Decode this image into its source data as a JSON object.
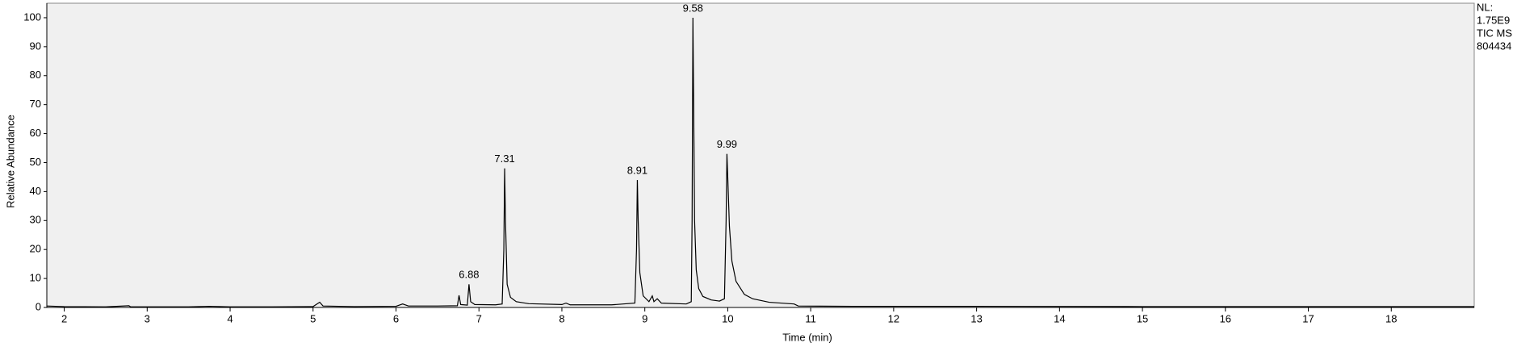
{
  "chart_data": {
    "type": "line",
    "x_label": "Time (min)",
    "y_label": "Relative Abundance",
    "info": [
      "NL:",
      "1.75E9",
      "TIC  MS",
      "804434"
    ],
    "color": "#000000",
    "x": [
      1.79,
      2.0,
      2.5,
      2.78,
      2.8,
      3.5,
      3.75,
      4.0,
      4.5,
      5.0,
      5.08,
      5.12,
      5.5,
      6.0,
      6.08,
      6.15,
      6.5,
      6.74,
      6.76,
      6.78,
      6.86,
      6.88,
      6.9,
      6.95,
      7.2,
      7.28,
      7.3,
      7.31,
      7.32,
      7.34,
      7.38,
      7.45,
      7.6,
      8.0,
      8.05,
      8.1,
      8.6,
      8.88,
      8.9,
      8.91,
      8.92,
      8.94,
      8.98,
      9.05,
      9.09,
      9.11,
      9.15,
      9.2,
      9.5,
      9.56,
      9.57,
      9.58,
      9.59,
      9.6,
      9.62,
      9.65,
      9.7,
      9.8,
      9.9,
      9.96,
      9.98,
      9.99,
      10.0,
      10.02,
      10.05,
      10.1,
      10.2,
      10.3,
      10.5,
      10.8,
      10.85,
      11.5,
      13,
      15,
      17,
      19
    ],
    "values": [
      0.5,
      0.3,
      0.2,
      0.6,
      0.2,
      0.2,
      0.4,
      0.2,
      0.2,
      0.3,
      1.8,
      0.5,
      0.3,
      0.4,
      1.2,
      0.5,
      0.5,
      0.6,
      4.2,
      1.0,
      0.8,
      8.0,
      2.0,
      1.0,
      0.9,
      1.2,
      20,
      48,
      30,
      8,
      3.5,
      2,
      1.3,
      1.0,
      1.5,
      0.9,
      0.9,
      1.5,
      20,
      44,
      30,
      12,
      4,
      2,
      4,
      2,
      3,
      1.5,
      1.2,
      2,
      30,
      100,
      66,
      30,
      13,
      6.5,
      3.8,
      2.6,
      2.2,
      3,
      30,
      53,
      45,
      28,
      16,
      9,
      4.5,
      3,
      1.8,
      1.2,
      0.5,
      0.4,
      0.4,
      0.3,
      0.3,
      0.3
    ],
    "annotations": [
      {
        "x": 6.88,
        "y": 8
      },
      {
        "x": 7.31,
        "y": 48
      },
      {
        "x": 8.91,
        "y": 44
      },
      {
        "x": 9.58,
        "y": 100
      },
      {
        "x": 9.99,
        "y": 53
      }
    ],
    "xlim": [
      1.79,
      19.0
    ],
    "ylim": [
      0,
      105
    ],
    "xticks": [
      2,
      3,
      4,
      5,
      6,
      7,
      8,
      9,
      10,
      11,
      12,
      13,
      14,
      15,
      16,
      17,
      18
    ],
    "yticks": [
      0,
      10,
      20,
      30,
      40,
      50,
      60,
      70,
      80,
      90,
      100
    ]
  }
}
